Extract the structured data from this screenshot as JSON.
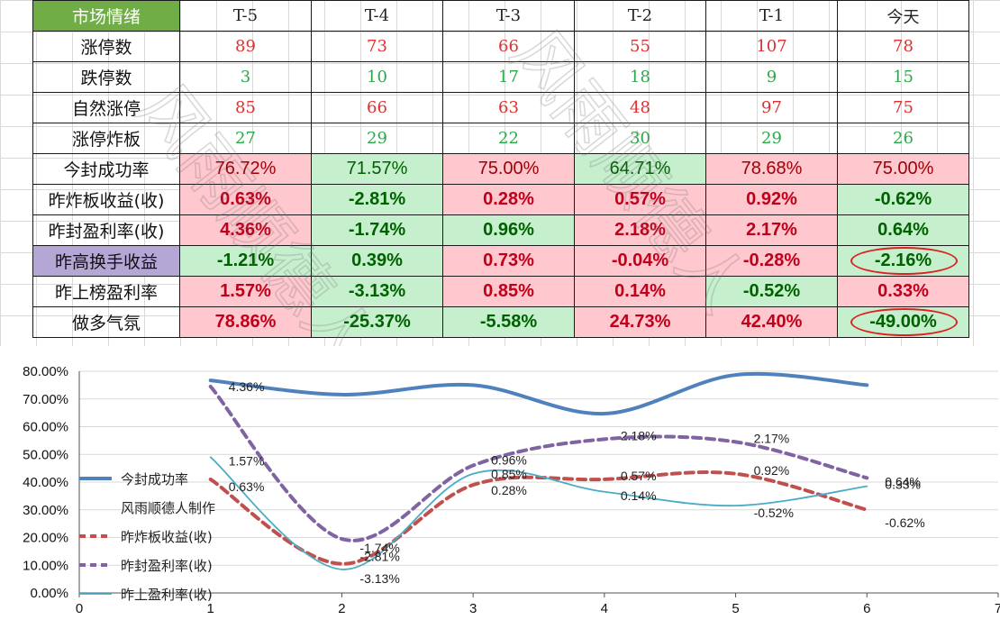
{
  "table": {
    "header": [
      "市场情绪",
      "T-5",
      "T-4",
      "T-3",
      "T-2",
      "T-1",
      "今天"
    ],
    "count_rows": [
      {
        "label": "涨停数",
        "values": [
          "89",
          "73",
          "66",
          "55",
          "107",
          "78"
        ],
        "color": "red"
      },
      {
        "label": "跌停数",
        "values": [
          "3",
          "10",
          "17",
          "18",
          "9",
          "15"
        ],
        "color": "green"
      },
      {
        "label": "自然涨停",
        "values": [
          "85",
          "66",
          "63",
          "48",
          "97",
          "75"
        ],
        "color": "red"
      },
      {
        "label": "涨停炸板",
        "values": [
          "27",
          "29",
          "22",
          "30",
          "29",
          "26"
        ],
        "color": "green"
      }
    ],
    "pct_rows": [
      {
        "label": "今封成功率",
        "values": [
          "76.72%",
          "71.57%",
          "75.00%",
          "64.71%",
          "78.68%",
          "75.00%"
        ],
        "bold": false,
        "cells": [
          "pink",
          "green",
          "pink",
          "green",
          "pink",
          "pink"
        ]
      },
      {
        "label": "昨炸板收益(收)",
        "values": [
          "0.63%",
          "-2.81%",
          "0.28%",
          "0.57%",
          "0.92%",
          "-0.62%"
        ],
        "bold": true,
        "cells": [
          "pink",
          "green",
          "pink",
          "pink",
          "pink",
          "green"
        ]
      },
      {
        "label": "昨封盈利率(收)",
        "values": [
          "4.36%",
          "-1.74%",
          "0.96%",
          "2.18%",
          "2.17%",
          "0.64%"
        ],
        "bold": true,
        "cells": [
          "pink",
          "green",
          "green",
          "pink",
          "pink",
          "green"
        ]
      },
      {
        "label": "昨高换手收益",
        "values": [
          "-1.21%",
          "0.39%",
          "0.73%",
          "-0.04%",
          "-0.28%",
          "-2.16%"
        ],
        "bold": true,
        "cells": [
          "green",
          "green",
          "pink",
          "pink",
          "pink",
          "green"
        ],
        "label_bg": "purple",
        "circled": [
          5
        ]
      },
      {
        "label": "昨上榜盈利率",
        "values": [
          "1.57%",
          "-3.13%",
          "0.85%",
          "0.14%",
          "-0.52%",
          "0.33%"
        ],
        "bold": true,
        "cells": [
          "pink",
          "green",
          "pink",
          "pink",
          "green",
          "pink"
        ]
      },
      {
        "label": "做多气氛",
        "values": [
          "78.86%",
          "-25.37%",
          "-5.58%",
          "24.73%",
          "42.40%",
          "-49.00%"
        ],
        "bold": true,
        "cells": [
          "pink",
          "green",
          "green",
          "pink",
          "pink",
          "green"
        ],
        "circled": [
          5
        ]
      }
    ]
  },
  "watermark_text": [
    "风雨顺德人",
    "风雨顺德人"
  ],
  "chart_data": {
    "type": "line",
    "x": [
      1,
      2,
      3,
      4,
      5,
      6
    ],
    "xlim": [
      0,
      7
    ],
    "ylim": [
      0,
      0.8
    ],
    "x_ticks": [
      "0",
      "1",
      "2",
      "3",
      "4",
      "5",
      "6",
      "7"
    ],
    "y_ticks": [
      "0.00%",
      "10.00%",
      "20.00%",
      "30.00%",
      "40.00%",
      "50.00%",
      "60.00%",
      "70.00%",
      "80.00%"
    ],
    "grid": "horizontal",
    "legend_position": "left",
    "smooth": true,
    "series": [
      {
        "name": "今封成功率",
        "values": [
          0.7672,
          0.7157,
          0.75,
          0.6471,
          0.7868,
          0.75
        ],
        "color": "#4f81bd",
        "style": "solid-thick",
        "labels": []
      },
      {
        "name": "昨炸板收益(收)",
        "values": [
          0.41,
          0.105,
          0.39,
          0.41,
          0.43,
          0.3
        ],
        "color": "#c0504d",
        "style": "dashed",
        "labels": [
          "0.63%",
          "-2.81%",
          "0.28%",
          "0.57%",
          "0.92%",
          "-0.62%"
        ]
      },
      {
        "name": "昨封盈利率(收)",
        "values": [
          0.745,
          0.195,
          0.46,
          0.555,
          0.545,
          0.415
        ],
        "color": "#8064a2",
        "style": "dashed",
        "labels": [
          "4.36%",
          "-1.74%",
          "0.96%",
          "2.18%",
          "2.17%",
          "0.64%"
        ]
      },
      {
        "name": "昨上盈利率(收)",
        "values": [
          0.49,
          0.085,
          0.43,
          0.365,
          0.315,
          0.385
        ],
        "color": "#4bacc6",
        "style": "solid-thin",
        "labels": [
          "1.57%",
          "-3.13%",
          "0.85%",
          "0.14%",
          "-0.52%",
          "0.33%"
        ]
      }
    ],
    "legend": [
      {
        "label": "今封成功率",
        "series": 0
      },
      {
        "label": "风雨顺德人制作",
        "series": null
      },
      {
        "label": "昨炸板收益(收)",
        "series": 1
      },
      {
        "label": "昨封盈利率(收)",
        "series": 2
      },
      {
        "label": "昨上盈利率(收)",
        "series": 3
      }
    ]
  }
}
